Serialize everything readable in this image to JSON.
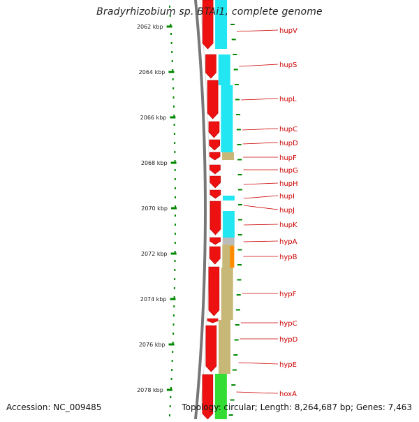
{
  "title": "Bradyrhizobium sp. BTAi1, complete genome",
  "accession_label": "Accession: NC_009485",
  "topology_label": "Topology: circular; Length: 8,264,687 bp; Genes: 7,463",
  "colors": {
    "cds_arrow": "#ee1111",
    "hyd_cyan": "#22e6f2",
    "olive": "#c8b878",
    "orange": "#ff8c00",
    "green": "#33dd33",
    "grey": "#bbbbbb",
    "ticks": "#008800",
    "gene_label": "#cc0000",
    "backbone": "#777777"
  },
  "axis": {
    "kbp_labels": [
      "2062 kbp",
      "2064 kbp",
      "2066 kbp",
      "2068 kbp",
      "2070 kbp",
      "2072 kbp",
      "2074 kbp",
      "2076 kbp",
      "2078 kbp"
    ]
  },
  "genes": [
    {
      "name": "hupV"
    },
    {
      "name": "hupS"
    },
    {
      "name": "hupL"
    },
    {
      "name": "hupC"
    },
    {
      "name": "hupD"
    },
    {
      "name": "hupF"
    },
    {
      "name": "hupG"
    },
    {
      "name": "hupH"
    },
    {
      "name": "hupI"
    },
    {
      "name": "hupJ"
    },
    {
      "name": "hupK"
    },
    {
      "name": "hypA"
    },
    {
      "name": "hypB"
    },
    {
      "name": "hypF"
    },
    {
      "name": "hypC"
    },
    {
      "name": "hypD"
    },
    {
      "name": "hypE"
    },
    {
      "name": "hoxA"
    }
  ]
}
